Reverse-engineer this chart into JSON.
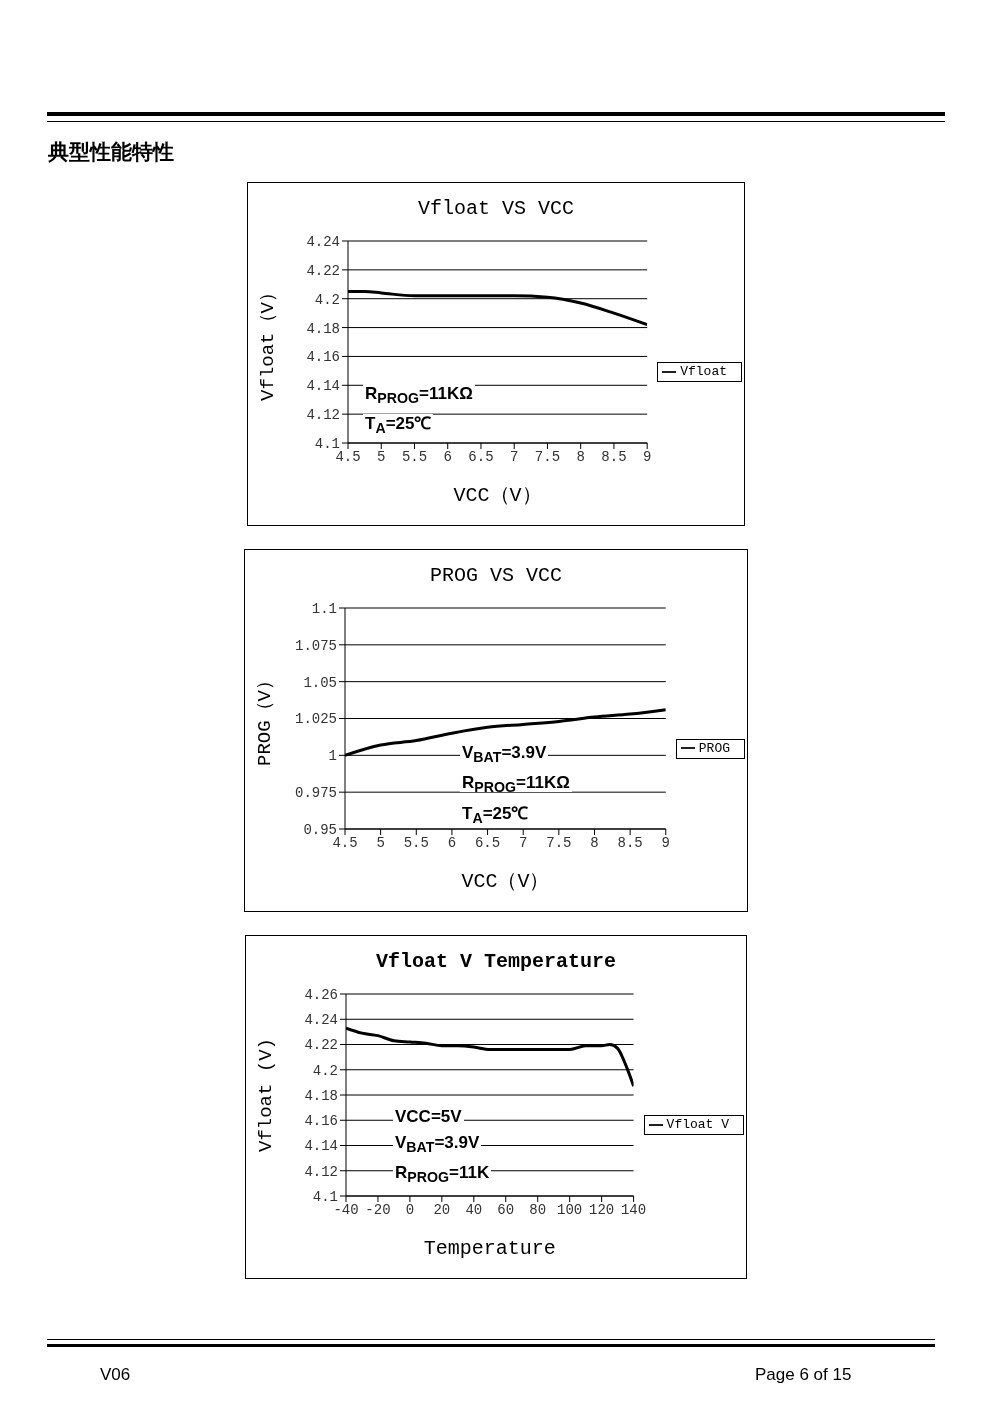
{
  "chart_data": [
    {
      "type": "line",
      "title": "Vfloat VS VCC",
      "xlabel": "VCC（V）",
      "ylabel": "Vfloat（V）",
      "x": [
        4.5,
        4.75,
        5,
        5.5,
        6,
        6.5,
        7,
        7.5,
        8,
        8.5,
        9
      ],
      "series": [
        {
          "name": "Vfloat",
          "color": "#000000",
          "values": [
            4.205,
            4.205,
            4.204,
            4.202,
            4.202,
            4.202,
            4.202,
            4.201,
            4.197,
            4.19,
            4.182
          ]
        }
      ],
      "xlim": [
        4.5,
        9
      ],
      "xticks": [
        4.5,
        5,
        5.5,
        6,
        6.5,
        7,
        7.5,
        8,
        8.5,
        9
      ],
      "ylim": [
        4.1,
        4.24
      ],
      "yticks": [
        4.1,
        4.12,
        4.14,
        4.16,
        4.18,
        4.2,
        4.22,
        4.24
      ],
      "grid": "y",
      "legend": "right",
      "marker": "none",
      "line_style": "solid",
      "annotations": [
        "典型性能特性",
        "R$_{PROG}$=11KΩ",
        "T$_{A}$=25℃"
      ]
    },
    {
      "type": "line",
      "title": "PROG VS VCC",
      "xlabel": "VCC（V）",
      "ylabel": "PROG（V）",
      "x": [
        4.5,
        5,
        5.5,
        6,
        6.5,
        7,
        7.5,
        8,
        8.5,
        9
      ],
      "series": [
        {
          "name": "PROG",
          "color": "#000000",
          "values": [
            1.0,
            1.007,
            1.01,
            1.015,
            1.019,
            1.021,
            1.023,
            1.026,
            1.028,
            1.031
          ]
        }
      ],
      "xlim": [
        4.5,
        9
      ],
      "xticks": [
        4.5,
        5,
        5.5,
        6,
        6.5,
        7,
        7.5,
        8,
        8.5,
        9
      ],
      "ylim": [
        0.95,
        1.1
      ],
      "yticks": [
        0.95,
        0.975,
        1,
        1.025,
        1.05,
        1.075,
        1.1
      ],
      "grid": "y",
      "legend": "right",
      "marker": "none",
      "line_style": "solid",
      "annotations": [
        "V$_{BAT}$=3.9V",
        "R$_{PROG}$=11KΩ",
        "T$_{A}$=25℃"
      ]
    },
    {
      "type": "line",
      "title": "Vfloat V Temperature",
      "xlabel": "Temperature",
      "ylabel": "Vfloat (V)",
      "x": [
        -40,
        -30,
        -20,
        -10,
        0,
        10,
        20,
        30,
        40,
        50,
        60,
        70,
        80,
        90,
        100,
        110,
        120,
        125,
        130,
        135,
        140
      ],
      "series": [
        {
          "name": "Vfloat V",
          "color": "#000000",
          "values": [
            4.233,
            4.229,
            4.227,
            4.223,
            4.222,
            4.221,
            4.219,
            4.219,
            4.218,
            4.216,
            4.216,
            4.216,
            4.216,
            4.216,
            4.216,
            4.219,
            4.219,
            4.22,
            4.217,
            4.204,
            4.187
          ]
        }
      ],
      "xlim": [
        -40,
        140
      ],
      "xticks": [
        -40,
        -20,
        0,
        20,
        40,
        60,
        80,
        100,
        120,
        140
      ],
      "ylim": [
        4.1,
        4.26
      ],
      "yticks": [
        4.1,
        4.12,
        4.14,
        4.16,
        4.18,
        4.2,
        4.22,
        4.24,
        4.26
      ],
      "grid": "y",
      "legend": "right",
      "marker": "none",
      "line_style": "solid",
      "annotations": [
        "VCC=5V",
        "V$_{BAT}$=3.9V",
        "R$_{PROG}$=11K",
        "V06",
        "Page 6 of 15"
      ]
    }
  ]
}
